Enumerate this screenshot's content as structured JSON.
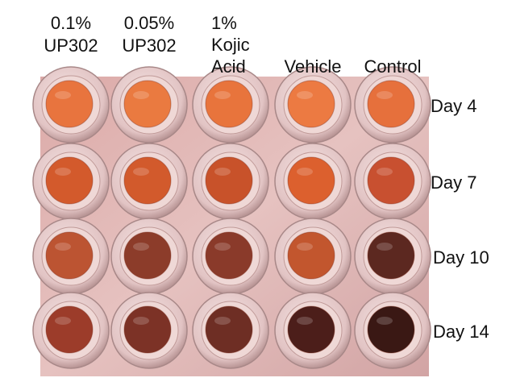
{
  "columns": [
    {
      "lines": [
        "0.1%",
        "UP302"
      ]
    },
    {
      "lines": [
        "0.05%",
        "UP302"
      ]
    },
    {
      "lines": [
        "1%",
        "Kojic",
        "Acid"
      ]
    },
    {
      "lines": [
        "Vehicle"
      ]
    },
    {
      "lines": [
        "Control"
      ]
    }
  ],
  "rows": [
    "Day 4",
    "Day 7",
    "Day 10",
    "Day 14"
  ]
}
